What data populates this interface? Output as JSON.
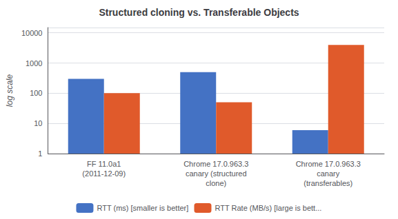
{
  "chart_data": {
    "type": "bar",
    "title": "Structured cloning vs. Transferable Objects",
    "categories": [
      "FF 11.0a1\n(2011-12-09)",
      "Chrome 17.0.963.3\ncanary (structured\nclone)",
      "Chrome 17.0.963.3\ncanary\n(transferables)"
    ],
    "series": [
      {
        "name": "RTT (ms) [smaller is better]",
        "color": "#4472C4",
        "values": [
          300,
          500,
          6
        ]
      },
      {
        "name": "RTT Rate (MB/s) [large is bett...",
        "color": "#E05A2B",
        "values": [
          100,
          50,
          4000
        ]
      }
    ],
    "ylabel": "log scale",
    "ylim": [
      1,
      15000
    ],
    "yticks": [
      1,
      10,
      100,
      1000,
      10000
    ],
    "log": "y",
    "grid": true,
    "legend": "bottom"
  }
}
